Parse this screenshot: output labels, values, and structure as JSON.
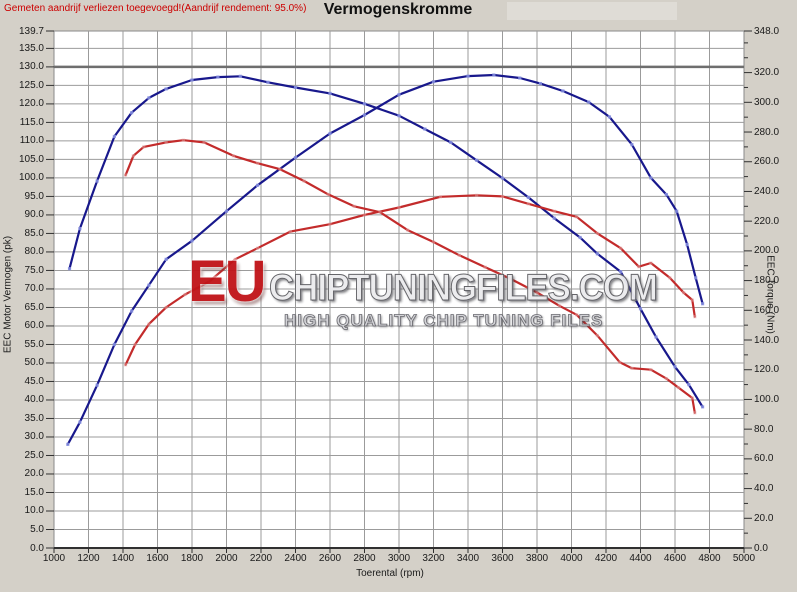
{
  "page": {
    "background": "#d4d0c8",
    "plot_background": "#ffffff",
    "grid_color": "#9b9b9b"
  },
  "header": {
    "note": "Gemeten aandrijf verliezen toegevoegd!(Aandrijf rendement: 95.0%)",
    "note_color": "#cc0000",
    "title": "Vermogenskromme"
  },
  "watermark": {
    "prefix": "EU",
    "domain": "CHIPTUNINGFILES.COM",
    "tagline": "HIGH QUALITY CHIP TUNING FILES",
    "prefix_color": "#c01318"
  },
  "chart_data": {
    "type": "line",
    "title": "Vermogenskromme",
    "grid": true,
    "legend": "none",
    "x_axis": {
      "label": "Toerental (rpm)",
      "min": 1000,
      "max": 5000,
      "gridline_step": 200,
      "tick_labels": [
        "1000",
        "1200",
        "1400",
        "1600",
        "1800",
        "2000",
        "2200",
        "2400",
        "2600",
        "2800",
        "3000",
        "3200",
        "3400",
        "3600",
        "3800",
        "4000",
        "4200",
        "4400",
        "4600",
        "4800",
        "5000"
      ]
    },
    "y_left": {
      "label": "EEC Motor Vermogen (pk)",
      "min": 0,
      "max": 139.7,
      "gridline_step": 5,
      "bold_gridline": 130,
      "tick_labels": [
        "139.7",
        "135.0",
        "130.0",
        "125.0",
        "120.0",
        "115.0",
        "110.0",
        "105.0",
        "100.0",
        "95.0",
        "90.0",
        "85.0",
        "80.0",
        "75.0",
        "70.0",
        "65.0",
        "60.0",
        "55.0",
        "50.0",
        "45.0",
        "40.0",
        "35.0",
        "30.0",
        "25.0",
        "20.0",
        "15.0",
        "10.0",
        "5.0",
        "0.0"
      ]
    },
    "y_right": {
      "label": "EEC Torque (Nm)",
      "min": 0,
      "max": 348,
      "minor_tick_step": 10,
      "tick_labels": [
        "348.0",
        "320.0",
        "300.0",
        "280.0",
        "260.0",
        "240.0",
        "220.0",
        "200.0",
        "180.0",
        "160.0",
        "140.0",
        "120.0",
        "100.0",
        "80.0",
        "60.0",
        "40.0",
        "20.0",
        "0.0"
      ]
    },
    "series": [
      {
        "name": "tuned-power",
        "axis": "left",
        "unit": "pk",
        "color": "#18188c",
        "marker_color": "#8a93e2",
        "points": [
          [
            1080,
            28
          ],
          [
            1150,
            34
          ],
          [
            1250,
            44
          ],
          [
            1350,
            55
          ],
          [
            1450,
            64
          ],
          [
            1550,
            71
          ],
          [
            1650,
            78
          ],
          [
            1800,
            83
          ],
          [
            2000,
            91
          ],
          [
            2180,
            98
          ],
          [
            2400,
            105.5
          ],
          [
            2600,
            112
          ],
          [
            2800,
            117
          ],
          [
            3000,
            122.5
          ],
          [
            3200,
            126
          ],
          [
            3400,
            127.5
          ],
          [
            3550,
            127.8
          ],
          [
            3700,
            127
          ],
          [
            3820,
            125.5
          ],
          [
            3950,
            123.5
          ],
          [
            4100,
            120.5
          ],
          [
            4220,
            116.5
          ],
          [
            4350,
            109
          ],
          [
            4460,
            100
          ],
          [
            4550,
            95.5
          ],
          [
            4610,
            91
          ],
          [
            4670,
            82
          ],
          [
            4720,
            73
          ],
          [
            4760,
            66
          ]
        ]
      },
      {
        "name": "tuned-torque",
        "axis": "right",
        "unit": "Nm",
        "color": "#18188c",
        "marker_color": "#8a93e2",
        "points": [
          [
            1090,
            188
          ],
          [
            1150,
            215
          ],
          [
            1250,
            247
          ],
          [
            1350,
            277
          ],
          [
            1450,
            293
          ],
          [
            1550,
            303
          ],
          [
            1650,
            309
          ],
          [
            1800,
            315
          ],
          [
            1950,
            317
          ],
          [
            2080,
            317.5
          ],
          [
            2240,
            313.5
          ],
          [
            2400,
            310
          ],
          [
            2600,
            306
          ],
          [
            2800,
            299
          ],
          [
            3000,
            291
          ],
          [
            3150,
            282
          ],
          [
            3300,
            273
          ],
          [
            3450,
            261
          ],
          [
            3600,
            249
          ],
          [
            3750,
            236
          ],
          [
            3900,
            222
          ],
          [
            4050,
            209
          ],
          [
            4150,
            198
          ],
          [
            4285,
            186
          ],
          [
            4400,
            161
          ],
          [
            4490,
            142
          ],
          [
            4600,
            122
          ],
          [
            4680,
            110
          ],
          [
            4760,
            95
          ]
        ]
      },
      {
        "name": "original-power",
        "axis": "left",
        "unit": "pk",
        "color": "#c32b2b",
        "marker_color": "#e2a1a1",
        "points": [
          [
            1415,
            49.5
          ],
          [
            1470,
            55
          ],
          [
            1550,
            60.5
          ],
          [
            1650,
            65
          ],
          [
            1760,
            68.5
          ],
          [
            1900,
            72
          ],
          [
            2050,
            78
          ],
          [
            2180,
            81
          ],
          [
            2370,
            85.5
          ],
          [
            2600,
            87.5
          ],
          [
            2800,
            90
          ],
          [
            3000,
            92
          ],
          [
            3240,
            94.9
          ],
          [
            3450,
            95.3
          ],
          [
            3600,
            95
          ],
          [
            3750,
            93
          ],
          [
            3900,
            91
          ],
          [
            4030,
            89.5
          ],
          [
            4150,
            85
          ],
          [
            4285,
            81
          ],
          [
            4390,
            76
          ],
          [
            4460,
            77
          ],
          [
            4570,
            73
          ],
          [
            4650,
            69
          ],
          [
            4700,
            67
          ],
          [
            4715,
            62.5
          ]
        ]
      },
      {
        "name": "original-torque",
        "axis": "right",
        "unit": "Nm",
        "color": "#c32b2b",
        "marker_color": "#e2a1a1",
        "points": [
          [
            1415,
            251
          ],
          [
            1460,
            264
          ],
          [
            1520,
            270
          ],
          [
            1650,
            273
          ],
          [
            1750,
            274.5
          ],
          [
            1870,
            273
          ],
          [
            2040,
            264
          ],
          [
            2180,
            259
          ],
          [
            2310,
            255
          ],
          [
            2450,
            247
          ],
          [
            2590,
            238
          ],
          [
            2740,
            230
          ],
          [
            2890,
            226
          ],
          [
            3050,
            214
          ],
          [
            3200,
            206
          ],
          [
            3350,
            197
          ],
          [
            3500,
            189
          ],
          [
            3650,
            181
          ],
          [
            3800,
            172
          ],
          [
            3930,
            163
          ],
          [
            4030,
            157
          ],
          [
            4150,
            143
          ],
          [
            4280,
            125
          ],
          [
            4350,
            121
          ],
          [
            4460,
            120
          ],
          [
            4550,
            114
          ],
          [
            4620,
            108
          ],
          [
            4700,
            101
          ],
          [
            4715,
            91
          ]
        ]
      }
    ],
    "peaks": {
      "tuned_power_pk": 127.8,
      "tuned_torque_nm": 318,
      "original_power_pk": 95.3,
      "original_torque_nm": 274.5
    }
  }
}
